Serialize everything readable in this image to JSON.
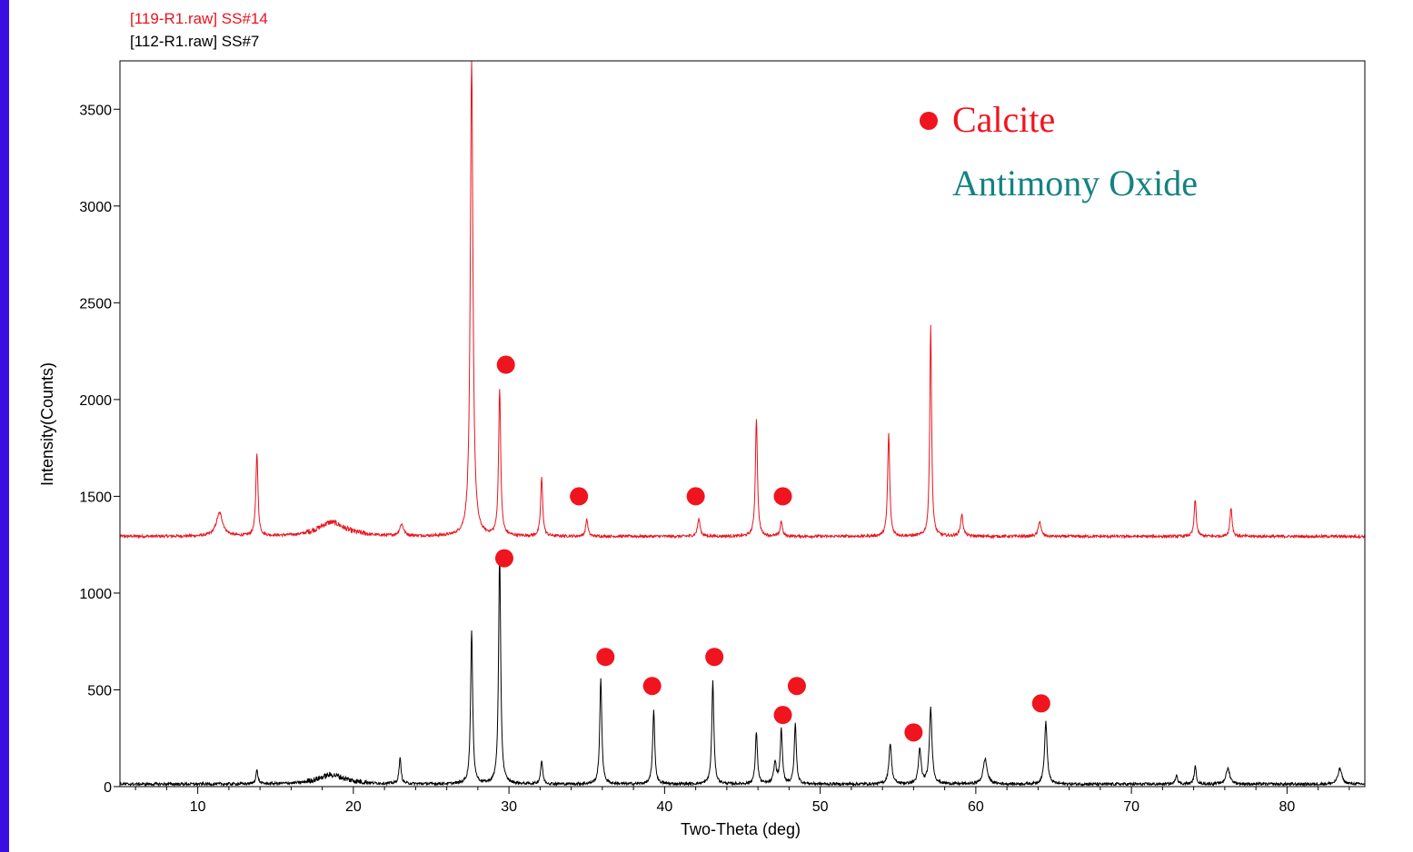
{
  "chart_data": {
    "type": "line",
    "xlabel": "Two-Theta (deg)",
    "ylabel": "Intensity(Counts)",
    "xlim": [
      5,
      85
    ],
    "ylim": [
      0,
      3750
    ],
    "x_ticks": [
      10,
      20,
      30,
      40,
      50,
      60,
      70,
      80
    ],
    "y_ticks": [
      0,
      500,
      1000,
      1500,
      2000,
      2500,
      3000,
      3500
    ],
    "grid": false,
    "series": [
      {
        "name": "[119-R1.raw] SS#14",
        "color": "#E8141E",
        "baseline": 1290,
        "peaks": [
          {
            "x": 11.4,
            "height": 120,
            "width": 0.25
          },
          {
            "x": 13.8,
            "height": 430,
            "width": 0.08
          },
          {
            "x": 18.6,
            "height": 70,
            "width": 1.0
          },
          {
            "x": 23.1,
            "height": 60,
            "width": 0.15
          },
          {
            "x": 27.6,
            "height": 2460,
            "width": 0.1
          },
          {
            "x": 29.4,
            "height": 760,
            "width": 0.08
          },
          {
            "x": 32.1,
            "height": 300,
            "width": 0.08
          },
          {
            "x": 35.0,
            "height": 90,
            "width": 0.08
          },
          {
            "x": 42.2,
            "height": 90,
            "width": 0.1
          },
          {
            "x": 45.9,
            "height": 610,
            "width": 0.08
          },
          {
            "x": 47.5,
            "height": 80,
            "width": 0.08
          },
          {
            "x": 54.4,
            "height": 530,
            "width": 0.08
          },
          {
            "x": 57.1,
            "height": 1090,
            "width": 0.07
          },
          {
            "x": 59.1,
            "height": 110,
            "width": 0.1
          },
          {
            "x": 64.1,
            "height": 80,
            "width": 0.1
          },
          {
            "x": 74.1,
            "height": 190,
            "width": 0.08
          },
          {
            "x": 76.4,
            "height": 150,
            "width": 0.08
          }
        ]
      },
      {
        "name": "[112-R1.raw] SS#7",
        "color": "#000000",
        "baseline": 10,
        "peaks": [
          {
            "x": 13.8,
            "height": 70,
            "width": 0.08
          },
          {
            "x": 18.6,
            "height": 45,
            "width": 1.0
          },
          {
            "x": 23.0,
            "height": 130,
            "width": 0.08
          },
          {
            "x": 27.6,
            "height": 790,
            "width": 0.08
          },
          {
            "x": 29.4,
            "height": 1190,
            "width": 0.08
          },
          {
            "x": 32.1,
            "height": 120,
            "width": 0.08
          },
          {
            "x": 35.9,
            "height": 540,
            "width": 0.08
          },
          {
            "x": 39.3,
            "height": 380,
            "width": 0.08
          },
          {
            "x": 43.1,
            "height": 530,
            "width": 0.08
          },
          {
            "x": 45.9,
            "height": 270,
            "width": 0.08
          },
          {
            "x": 47.1,
            "height": 110,
            "width": 0.1
          },
          {
            "x": 47.5,
            "height": 280,
            "width": 0.08
          },
          {
            "x": 48.4,
            "height": 310,
            "width": 0.08
          },
          {
            "x": 54.5,
            "height": 210,
            "width": 0.1
          },
          {
            "x": 56.4,
            "height": 180,
            "width": 0.1
          },
          {
            "x": 57.1,
            "height": 390,
            "width": 0.1
          },
          {
            "x": 60.6,
            "height": 130,
            "width": 0.15
          },
          {
            "x": 64.5,
            "height": 320,
            "width": 0.1
          },
          {
            "x": 72.9,
            "height": 50,
            "width": 0.08
          },
          {
            "x": 74.1,
            "height": 90,
            "width": 0.08
          },
          {
            "x": 76.2,
            "height": 80,
            "width": 0.15
          },
          {
            "x": 83.4,
            "height": 80,
            "width": 0.15
          }
        ]
      }
    ],
    "markers": {
      "label": "Calcite",
      "color": "#F0141E",
      "points": [
        {
          "x": 29.8,
          "y": 2180
        },
        {
          "x": 34.5,
          "y": 1500
        },
        {
          "x": 42.0,
          "y": 1500
        },
        {
          "x": 47.6,
          "y": 1500
        },
        {
          "x": 29.7,
          "y": 1180
        },
        {
          "x": 36.2,
          "y": 670
        },
        {
          "x": 39.2,
          "y": 520
        },
        {
          "x": 43.2,
          "y": 670
        },
        {
          "x": 47.6,
          "y": 370
        },
        {
          "x": 48.5,
          "y": 520
        },
        {
          "x": 56.0,
          "y": 280
        },
        {
          "x": 64.2,
          "y": 430
        }
      ]
    },
    "legend": [
      {
        "label": "Calcite",
        "color": "#F0141E",
        "marker": "dot"
      },
      {
        "label": "Antimony Oxide",
        "color": "#148282",
        "marker": "none"
      }
    ],
    "legend_position": "top-right"
  }
}
